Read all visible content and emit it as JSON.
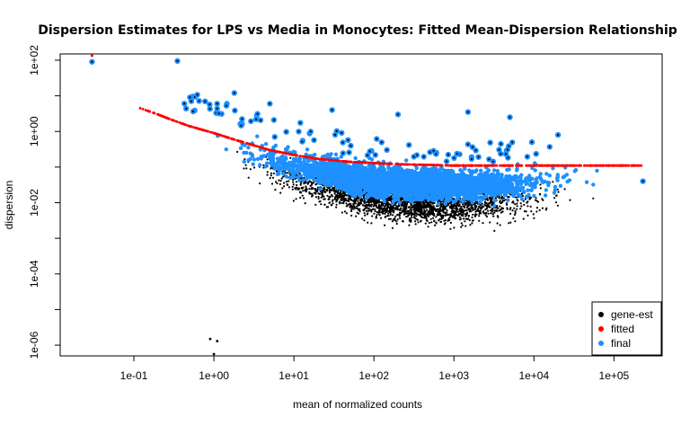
{
  "chart_data": {
    "type": "scatter",
    "title": "Dispersion Estimates for LPS vs Media in Monocytes: Fitted Mean-Dispersion Relationship",
    "xlabel": "mean of normalized counts",
    "ylabel": "dispersion",
    "x_scale": "log10",
    "y_scale": "log10",
    "xlim": [
      0.012,
      400000
    ],
    "ylim": [
      5e-07,
      150
    ],
    "x_ticks": [
      {
        "value": 0.1,
        "label": "1e-01"
      },
      {
        "value": 1,
        "label": "1e+00"
      },
      {
        "value": 10,
        "label": "1e+01"
      },
      {
        "value": 100,
        "label": "1e+02"
      },
      {
        "value": 1000,
        "label": "1e+03"
      },
      {
        "value": 10000,
        "label": "1e+04"
      },
      {
        "value": 100000,
        "label": "1e+05"
      }
    ],
    "y_ticks_labeled": [
      {
        "value": 1e-06,
        "label": "1e-06"
      },
      {
        "value": 0.0001,
        "label": "1e-04"
      },
      {
        "value": 0.01,
        "label": "1e-02"
      },
      {
        "value": 1,
        "label": "1e+00"
      },
      {
        "value": 100,
        "label": "1e+02"
      }
    ],
    "y_ticks_minor": [
      1e-05,
      0.001,
      0.1,
      10
    ],
    "legend_position": "bottom-right",
    "grid": false,
    "series": [
      {
        "name": "gene-est",
        "color": "#000000",
        "trend": {
          "x": [
            0.3,
            1,
            10,
            100,
            1000,
            10000,
            100000
          ],
          "y": [
            1.0,
            0.2,
            0.04,
            0.012,
            0.008,
            0.012,
            0.04
          ]
        },
        "outliers": [
          {
            "x": 0.9,
            "y": 1.5e-06
          },
          {
            "x": 1.1,
            "y": 1.3e-06
          },
          {
            "x": 1.0,
            "y": 4e-07
          }
        ]
      },
      {
        "name": "fitted",
        "color": "#ff0000",
        "points": [
          [
            0.03,
            150
          ],
          [
            0.12,
            4.5
          ],
          [
            0.2,
            3.0
          ],
          [
            0.3,
            2.1
          ],
          [
            0.5,
            1.4
          ],
          [
            1,
            0.9
          ],
          [
            2,
            0.55
          ],
          [
            5,
            0.3
          ],
          [
            10,
            0.22
          ],
          [
            20,
            0.17
          ],
          [
            50,
            0.14
          ],
          [
            100,
            0.13
          ],
          [
            200,
            0.12
          ],
          [
            500,
            0.115
          ],
          [
            1000,
            0.11
          ],
          [
            2000,
            0.11
          ],
          [
            5000,
            0.11
          ],
          [
            10000,
            0.11
          ],
          [
            20000,
            0.11
          ],
          [
            50000,
            0.11
          ],
          [
            100000,
            0.11
          ],
          [
            200000,
            0.11
          ]
        ]
      },
      {
        "name": "final",
        "color": "#1e90ff",
        "trend": {
          "x": [
            0.3,
            1,
            10,
            100,
            1000,
            10000,
            100000
          ],
          "y": [
            1.2,
            0.5,
            0.12,
            0.04,
            0.03,
            0.04,
            0.07
          ]
        },
        "outliers": [
          {
            "x": 0.03,
            "y": 90
          },
          {
            "x": 0.35,
            "y": 95
          },
          {
            "x": 1.8,
            "y": 12
          },
          {
            "x": 5,
            "y": 6
          },
          {
            "x": 30,
            "y": 4
          },
          {
            "x": 200,
            "y": 3
          },
          {
            "x": 1500,
            "y": 3.5
          },
          {
            "x": 5000,
            "y": 2.5
          },
          {
            "x": 20000,
            "y": 0.8
          },
          {
            "x": 230000,
            "y": 0.04
          }
        ]
      }
    ]
  }
}
